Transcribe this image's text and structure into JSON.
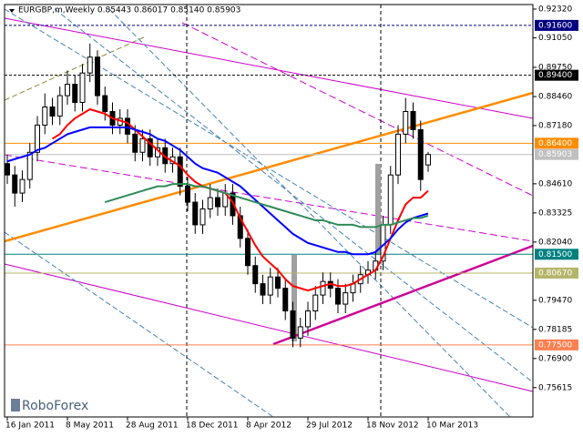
{
  "chart_data": {
    "type": "candlestick",
    "title": "EURGBP,m,Weekly  0.85443 0.86017 0.85140 0.85903",
    "logo": "RoboForex",
    "categories": [
      "16 Jan 2011",
      null,
      null,
      null,
      null,
      null,
      null,
      null,
      "8 May 2011",
      null,
      null,
      null,
      null,
      null,
      null,
      null,
      "28 Aug 2011",
      null,
      null,
      null,
      null,
      null,
      null,
      null,
      "18 Dec 2011",
      null,
      null,
      null,
      null,
      null,
      null,
      null,
      "8 Apr 2012",
      null,
      null,
      null,
      null,
      null,
      null,
      null,
      "29 Jul 2012",
      null,
      null,
      null,
      null,
      null,
      null,
      null,
      "18 Nov 2012",
      null,
      null,
      null,
      null,
      null,
      null,
      null,
      "10 Mar 2013"
    ],
    "open": [
      0.855,
      0.85,
      0.842,
      0.848,
      0.86,
      0.872,
      0.88,
      0.876,
      0.885,
      0.89,
      0.882,
      0.895,
      0.902,
      0.885,
      0.878,
      0.872,
      0.875,
      0.868,
      0.86,
      0.866,
      0.858,
      0.862,
      0.855,
      0.858,
      0.845,
      0.838,
      0.828,
      0.835,
      0.84,
      0.836,
      0.842,
      0.832,
      0.822,
      0.81,
      0.802,
      0.797,
      0.805,
      0.8,
      0.79,
      0.778,
      0.783,
      0.79,
      0.797,
      0.803,
      0.8,
      0.793,
      0.798,
      0.802,
      0.806,
      0.808,
      0.812,
      0.828,
      0.85,
      0.868,
      0.878,
      0.87,
      0.85443
    ],
    "high": [
      0.859,
      0.854,
      0.852,
      0.864,
      0.876,
      0.886,
      0.884,
      0.889,
      0.896,
      0.894,
      0.899,
      0.908,
      0.905,
      0.889,
      0.882,
      0.879,
      0.879,
      0.872,
      0.87,
      0.87,
      0.866,
      0.866,
      0.862,
      0.862,
      0.849,
      0.842,
      0.839,
      0.846,
      0.844,
      0.846,
      0.846,
      0.836,
      0.826,
      0.814,
      0.806,
      0.809,
      0.809,
      0.804,
      0.794,
      0.787,
      0.794,
      0.801,
      0.807,
      0.807,
      0.804,
      0.802,
      0.806,
      0.81,
      0.812,
      0.816,
      0.832,
      0.854,
      0.872,
      0.884,
      0.882,
      0.874,
      0.86017
    ],
    "low": [
      0.846,
      0.836,
      0.838,
      0.844,
      0.856,
      0.868,
      0.872,
      0.872,
      0.881,
      0.878,
      0.878,
      0.891,
      0.881,
      0.874,
      0.868,
      0.868,
      0.864,
      0.856,
      0.856,
      0.854,
      0.854,
      0.851,
      0.851,
      0.841,
      0.834,
      0.824,
      0.824,
      0.831,
      0.832,
      0.832,
      0.828,
      0.818,
      0.806,
      0.798,
      0.793,
      0.793,
      0.796,
      0.786,
      0.774,
      0.774,
      0.779,
      0.786,
      0.793,
      0.796,
      0.789,
      0.789,
      0.794,
      0.798,
      0.802,
      0.804,
      0.808,
      0.824,
      0.846,
      0.864,
      0.866,
      0.843,
      0.8514
    ],
    "close": [
      0.85,
      0.842,
      0.848,
      0.86,
      0.872,
      0.88,
      0.876,
      0.885,
      0.89,
      0.882,
      0.895,
      0.902,
      0.885,
      0.878,
      0.872,
      0.875,
      0.868,
      0.86,
      0.866,
      0.858,
      0.862,
      0.855,
      0.858,
      0.845,
      0.838,
      0.828,
      0.835,
      0.84,
      0.836,
      0.842,
      0.832,
      0.822,
      0.81,
      0.802,
      0.797,
      0.805,
      0.8,
      0.79,
      0.778,
      0.783,
      0.79,
      0.797,
      0.803,
      0.8,
      0.793,
      0.798,
      0.802,
      0.806,
      0.808,
      0.812,
      0.828,
      0.85,
      0.868,
      0.878,
      0.87,
      0.848,
      0.85903
    ],
    "series": [
      {
        "color": "#ff0000",
        "values": [
          null,
          null,
          null,
          null,
          null,
          null,
          0.866,
          0.868,
          0.872,
          0.875,
          0.877,
          0.879,
          0.878,
          0.877,
          0.875,
          0.874,
          0.873,
          0.87,
          0.867,
          0.864,
          0.861,
          0.858,
          0.856,
          0.854,
          0.85,
          0.847,
          0.845,
          0.844,
          0.843,
          0.842,
          0.838,
          0.831,
          0.825,
          0.819,
          0.814,
          0.811,
          0.808,
          0.804,
          0.801,
          0.8,
          0.799,
          0.8,
          0.801,
          0.802,
          0.801,
          0.801,
          0.802,
          0.804,
          0.806,
          0.808,
          0.814,
          0.822,
          0.83,
          0.837,
          0.84,
          0.84,
          0.843
        ]
      },
      {
        "color": "#0000ff",
        "values": [
          0.856,
          0.857,
          0.858,
          0.859,
          0.861,
          0.862,
          0.864,
          0.866,
          0.868,
          0.869,
          0.87,
          0.871,
          0.871,
          0.871,
          0.871,
          0.871,
          0.871,
          0.87,
          0.869,
          0.868,
          0.866,
          0.865,
          0.863,
          0.861,
          0.858,
          0.855,
          0.853,
          0.852,
          0.851,
          0.849,
          0.847,
          0.845,
          0.842,
          0.839,
          0.836,
          0.833,
          0.83,
          0.827,
          0.824,
          0.822,
          0.82,
          0.819,
          0.818,
          0.817,
          0.816,
          0.816,
          0.815,
          0.815,
          0.815,
          0.816,
          0.819,
          0.822,
          0.826,
          0.829,
          0.831,
          0.832,
          0.833
        ]
      },
      {
        "color": "#2e8b57",
        "values": [
          null,
          null,
          null,
          null,
          null,
          null,
          null,
          null,
          null,
          null,
          null,
          null,
          null,
          0.838,
          0.839,
          0.84,
          0.841,
          0.842,
          0.843,
          0.844,
          0.845,
          0.845,
          0.846,
          0.846,
          0.846,
          0.845,
          0.845,
          0.844,
          0.843,
          0.842,
          0.841,
          0.84,
          0.839,
          0.838,
          0.837,
          0.836,
          0.835,
          0.834,
          0.833,
          0.832,
          0.831,
          0.83,
          0.83,
          0.829,
          0.828,
          0.828,
          0.828,
          0.827,
          0.827,
          0.827,
          0.828,
          0.828,
          0.829,
          0.83,
          0.831,
          0.831,
          0.832
        ]
      }
    ],
    "ylim": [
      0.7432,
      0.9252
    ],
    "yticks": [
      {
        "value": 0.9232,
        "label": "0.92320"
      },
      {
        "value": 0.9105,
        "label": "0.91050"
      },
      {
        "value": 0.8975,
        "label": "0.89750"
      },
      {
        "value": 0.8846,
        "label": "0.88460"
      },
      {
        "value": 0.8718,
        "label": "0.87180"
      },
      {
        "value": 0.8461,
        "label": "0.84610"
      },
      {
        "value": 0.83325,
        "label": "0.83325"
      },
      {
        "value": 0.8204,
        "label": "0.82040"
      },
      {
        "value": 0.7947,
        "label": "0.79470"
      },
      {
        "value": 0.78185,
        "label": "0.78185"
      },
      {
        "value": 0.769,
        "label": "0.76900"
      },
      {
        "value": 0.75615,
        "label": "0.75615"
      }
    ],
    "levels": [
      {
        "value": 0.916,
        "label": "0.91600",
        "color": "#000080",
        "dash": true
      },
      {
        "value": 0.894,
        "label": "0.89400",
        "color": "#000000",
        "dash": true
      },
      {
        "value": 0.864,
        "label": "0.86400",
        "color": "#ff8c00",
        "dash": false
      },
      {
        "value": 0.85903,
        "label": "0.85903",
        "color": "#c0c0c0",
        "dash": false
      },
      {
        "value": 0.815,
        "label": "0.81500",
        "color": "#008080",
        "dash": false
      },
      {
        "value": 0.8067,
        "label": "0.80670",
        "color": "#b5b56a",
        "dash": false
      },
      {
        "value": 0.775,
        "label": "0.77500",
        "color": "#ff7f50",
        "dash": false
      }
    ]
  }
}
